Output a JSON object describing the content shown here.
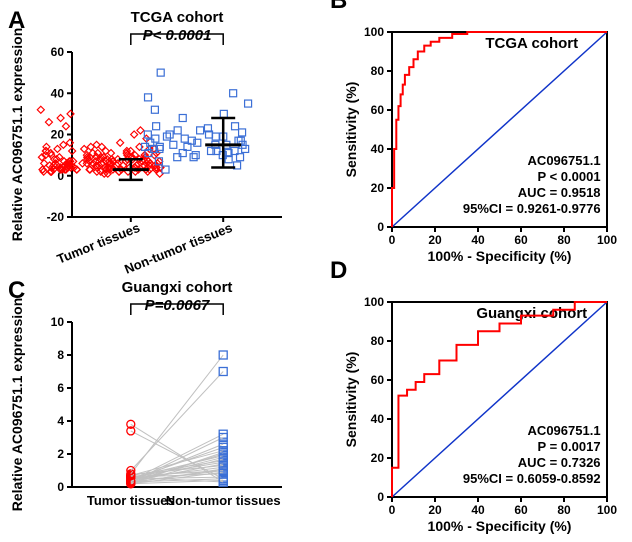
{
  "panel_letters": {
    "A": "A",
    "B": "B",
    "C": "C",
    "D": "D"
  },
  "colors": {
    "red": "#ff0000",
    "blue_marker": "#3b6fd6",
    "blue_line": "#1034c9",
    "black": "#000000",
    "gray_line": "#c0c0c0"
  },
  "panelA": {
    "title": "TCGA cohort",
    "p_text": "P< 0.0001",
    "ylabel": "Relative AC096751.1 expression",
    "y_ticks": [
      -20,
      0,
      20,
      40,
      60
    ],
    "categories": [
      "Tumor tissues",
      "Non-tumor tissues"
    ],
    "tumor": {
      "points": [
        2,
        3,
        1,
        4,
        5,
        2,
        3,
        6,
        4,
        7,
        5,
        3,
        2,
        8,
        9,
        10,
        11,
        12,
        14,
        16,
        18,
        20,
        22,
        24,
        26,
        28,
        30,
        32,
        2,
        3,
        4,
        5,
        6,
        7,
        3,
        2,
        1,
        4,
        5,
        6,
        3,
        2,
        4,
        5,
        6,
        7,
        8,
        9,
        3,
        4,
        2,
        1,
        3,
        4,
        5,
        6,
        7,
        8,
        9,
        10,
        11,
        12,
        13,
        14,
        3,
        4,
        5,
        6,
        7,
        3,
        4,
        5,
        2,
        3,
        4,
        5,
        6,
        7,
        8,
        9,
        10,
        11,
        12,
        13,
        14,
        15,
        16,
        3,
        4,
        5,
        6,
        7,
        8,
        9,
        2,
        3,
        4,
        5,
        6,
        7,
        8,
        9,
        10,
        11,
        12,
        13,
        3,
        4,
        5,
        6,
        7,
        8,
        2,
        3,
        4,
        5,
        6,
        7,
        3,
        4,
        5,
        6,
        7,
        8,
        9,
        10,
        2,
        3,
        4,
        5,
        6,
        7,
        8,
        9,
        10,
        3,
        4,
        5,
        6,
        7,
        8,
        9,
        10,
        11,
        12,
        13,
        14,
        15,
        3,
        4,
        5,
        6,
        7,
        8,
        9,
        10,
        11,
        12
      ],
      "median": 3,
      "whisker_lo": -2,
      "whisker_hi": 8
    },
    "nontumor": {
      "points": [
        10,
        12,
        14,
        8,
        9,
        15,
        17,
        19,
        20,
        22,
        24,
        28,
        30,
        32,
        35,
        38,
        40,
        50,
        11,
        13,
        15,
        12,
        14,
        16,
        18,
        20,
        9,
        10,
        11,
        12,
        13,
        14,
        15,
        16,
        17,
        18,
        19,
        20,
        21,
        22,
        23,
        24,
        3,
        5,
        7,
        9,
        11,
        13,
        15,
        17,
        19
      ],
      "median": 15,
      "whisker_lo": 4,
      "whisker_hi": 28
    }
  },
  "panelB": {
    "title": "TCGA cohort",
    "ylabel": "Sensitivity (%)",
    "xlabel": "100% - Specificity (%)",
    "ticks": [
      0,
      20,
      40,
      60,
      80,
      100
    ],
    "stats": [
      "AC096751.1",
      "P < 0.0001",
      "AUC = 0.9518",
      "95%CI = 0.9261-0.9776"
    ],
    "roc": [
      [
        0,
        0
      ],
      [
        0,
        10
      ],
      [
        1,
        20
      ],
      [
        1,
        30
      ],
      [
        2,
        40
      ],
      [
        2,
        48
      ],
      [
        3,
        55
      ],
      [
        4,
        62
      ],
      [
        5,
        68
      ],
      [
        6,
        73
      ],
      [
        8,
        78
      ],
      [
        10,
        82
      ],
      [
        12,
        86
      ],
      [
        15,
        90
      ],
      [
        18,
        93
      ],
      [
        22,
        95
      ],
      [
        28,
        97
      ],
      [
        35,
        99
      ],
      [
        45,
        100
      ],
      [
        100,
        100
      ]
    ]
  },
  "panelC": {
    "title": "Guangxi cohort",
    "p_text": "P=0.0067",
    "ylabel": "Relative AC096751.1 expression",
    "y_ticks": [
      0,
      2,
      4,
      6,
      8,
      10
    ],
    "categories": [
      "Tumor tissues",
      "Non-tumor tissues"
    ],
    "pairs": [
      [
        0.3,
        1.0
      ],
      [
        0.2,
        2.1
      ],
      [
        0.4,
        1.8
      ],
      [
        0.5,
        0.6
      ],
      [
        0.6,
        1.5
      ],
      [
        0.2,
        0.4
      ],
      [
        0.3,
        2.0
      ],
      [
        0.4,
        3.2
      ],
      [
        0.5,
        1.2
      ],
      [
        0.6,
        0.8
      ],
      [
        0.7,
        1.6
      ],
      [
        0.25,
        1.1
      ],
      [
        0.3,
        0.5
      ],
      [
        0.35,
        1.4
      ],
      [
        0.45,
        2.4
      ],
      [
        0.55,
        1.9
      ],
      [
        0.6,
        0.3
      ],
      [
        0.65,
        1.0
      ],
      [
        0.7,
        2.2
      ],
      [
        0.75,
        1.3
      ],
      [
        0.2,
        0.9
      ],
      [
        0.25,
        1.7
      ],
      [
        0.3,
        3.0
      ],
      [
        0.35,
        2.6
      ],
      [
        0.8,
        8.0
      ],
      [
        3.4,
        0.5
      ],
      [
        1.0,
        7.0
      ],
      [
        3.8,
        0.3
      ]
    ]
  },
  "panelD": {
    "title": "Guangxi cohort",
    "ylabel": "Sensitivity (%)",
    "xlabel": "100% - Specificity (%)",
    "ticks": [
      0,
      20,
      40,
      60,
      80,
      100
    ],
    "stats": [
      "AC096751.1",
      "P = 0.0017",
      "AUC = 0.7326",
      "95%CI = 0.6059-0.8592"
    ],
    "roc": [
      [
        0,
        0
      ],
      [
        0,
        7
      ],
      [
        0,
        15
      ],
      [
        3,
        15
      ],
      [
        3,
        22
      ],
      [
        3,
        52
      ],
      [
        7,
        52
      ],
      [
        7,
        55
      ],
      [
        11,
        55
      ],
      [
        11,
        59
      ],
      [
        15,
        59
      ],
      [
        15,
        63
      ],
      [
        22,
        63
      ],
      [
        22,
        70
      ],
      [
        30,
        70
      ],
      [
        30,
        78
      ],
      [
        40,
        78
      ],
      [
        40,
        85
      ],
      [
        50,
        85
      ],
      [
        50,
        89
      ],
      [
        60,
        89
      ],
      [
        60,
        93
      ],
      [
        75,
        93
      ],
      [
        75,
        96
      ],
      [
        85,
        96
      ],
      [
        85,
        100
      ],
      [
        100,
        100
      ]
    ]
  }
}
